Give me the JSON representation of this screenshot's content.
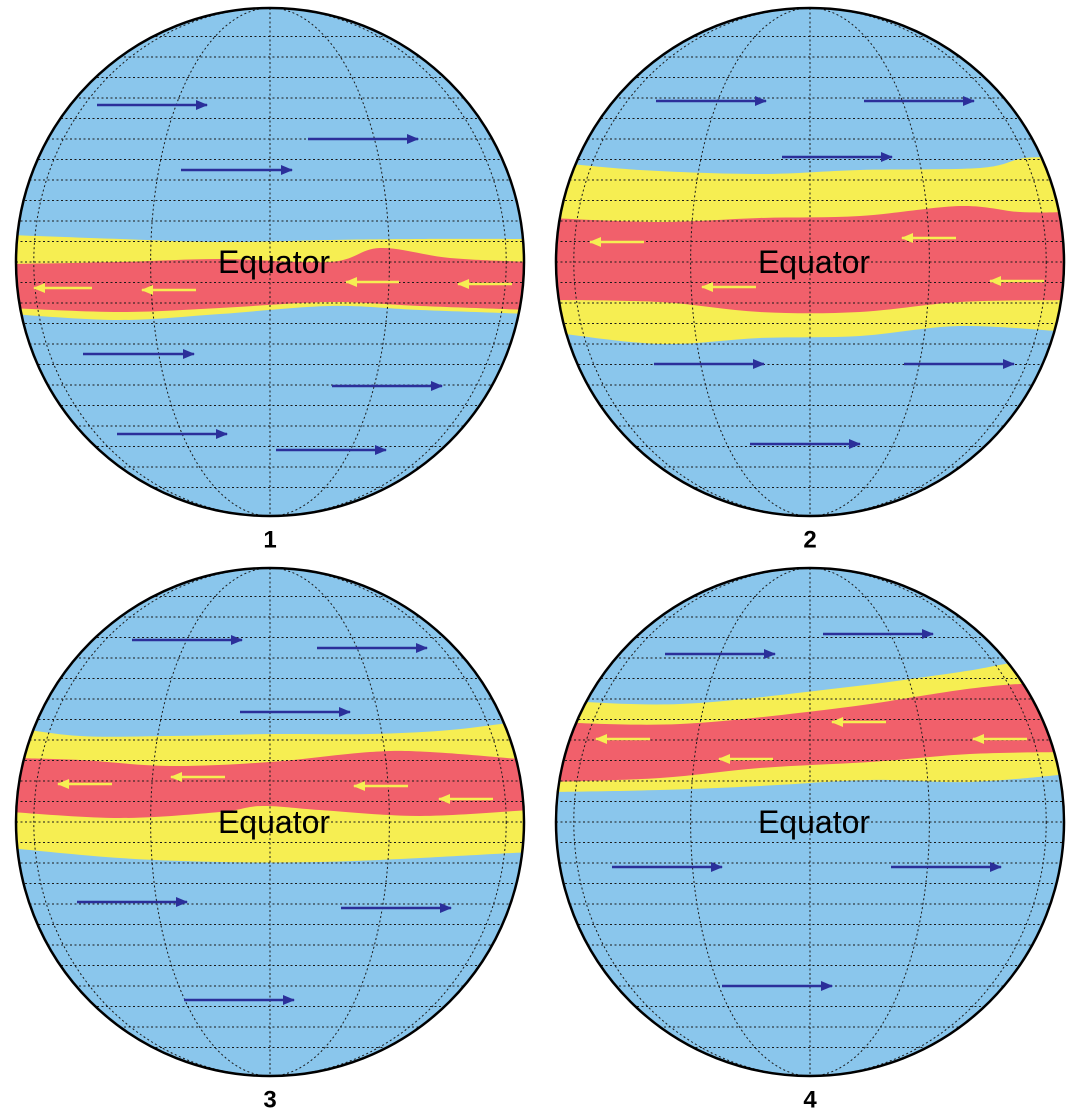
{
  "colors": {
    "ocean": "#8ac6ec",
    "warm_band": "#f6ee52",
    "hot_band": "#f1606b",
    "westerly_arrow": "#2b2f9a",
    "trade_arrow": "#f6ee52",
    "outline": "#000000"
  },
  "panels": [
    {
      "number": "1",
      "equator_label": "Equator"
    },
    {
      "number": "2",
      "equator_label": "Equator"
    },
    {
      "number": "3",
      "equator_label": "Equator"
    },
    {
      "number": "4",
      "equator_label": "Equator"
    }
  ]
}
